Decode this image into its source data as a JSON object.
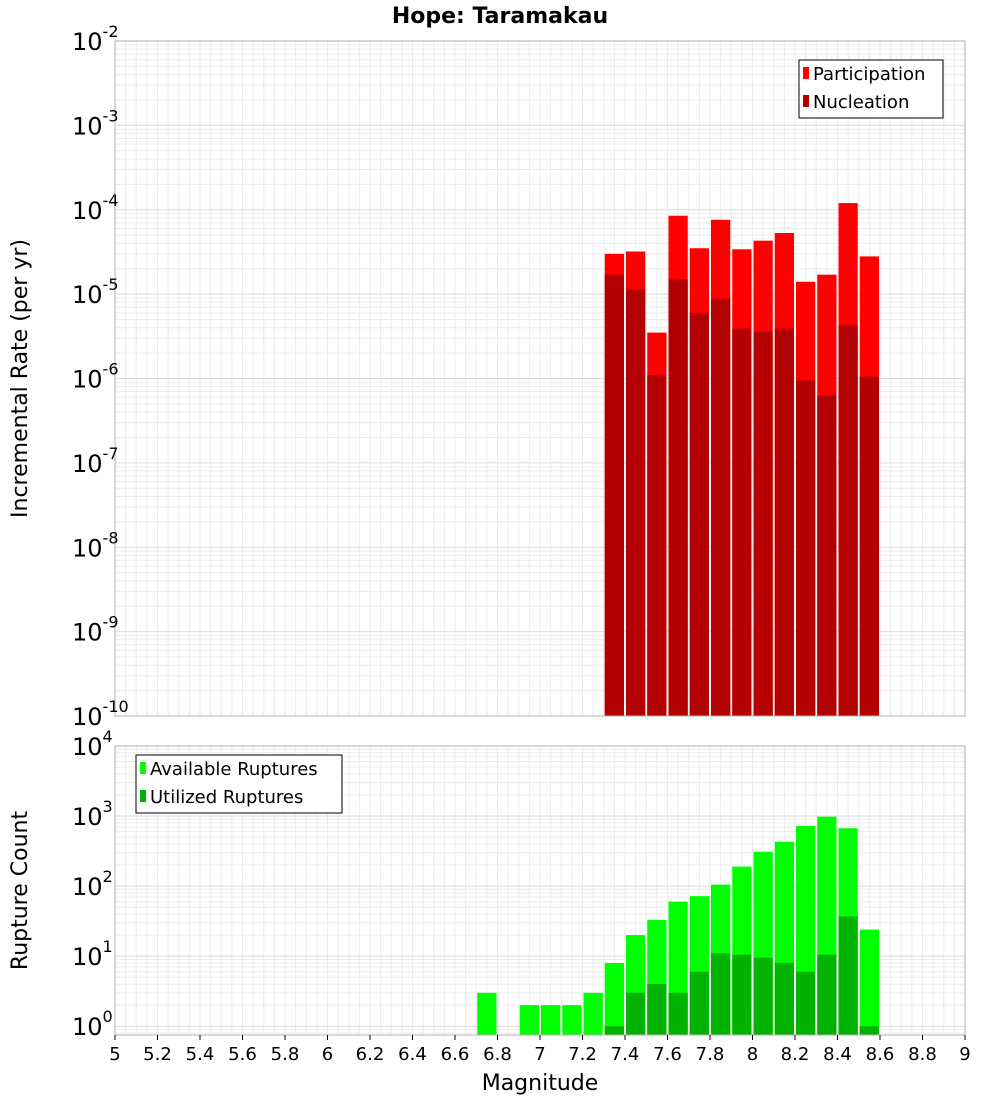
{
  "chart_data": {
    "title": "Hope: Taramakau",
    "xlabel": "Magnitude",
    "xlim": [
      5,
      9
    ],
    "x_ticks": [
      "5",
      "5.2",
      "5.4",
      "5.6",
      "5.8",
      "6",
      "6.2",
      "6.4",
      "6.6",
      "6.8",
      "7",
      "7.2",
      "7.4",
      "7.6",
      "7.8",
      "8",
      "8.2",
      "8.4",
      "8.6",
      "8.8",
      "9"
    ],
    "bin_width": 0.1,
    "grid": true,
    "panels": [
      {
        "type": "bar",
        "yscale": "log",
        "ylabel": "Incremental Rate (per yr)",
        "ylim": [
          1e-10,
          0.01
        ],
        "y_tick_exponents": [
          -10,
          -9,
          -8,
          -7,
          -6,
          -5,
          -4,
          -3,
          -2
        ],
        "legend": {
          "placement": "top-right",
          "entries": [
            "Participation",
            "Nucleation"
          ]
        },
        "series": [
          {
            "name": "Participation",
            "color": "#ff0000",
            "x": [
              7.35,
              7.45,
              7.55,
              7.65,
              7.75,
              7.85,
              7.95,
              8.05,
              8.15,
              8.25,
              8.35,
              8.45,
              8.55
            ],
            "values": [
              3e-05,
              3.2e-05,
              3.5e-06,
              8.5e-05,
              3.5e-05,
              7.6e-05,
              3.4e-05,
              4.3e-05,
              5.3e-05,
              1.4e-05,
              1.7e-05,
              0.00012,
              2.8e-05
            ]
          },
          {
            "name": "Nucleation",
            "color": "#b30000",
            "x": [
              7.35,
              7.45,
              7.55,
              7.65,
              7.75,
              7.85,
              7.95,
              8.05,
              8.15,
              8.25,
              8.35,
              8.45,
              8.55
            ],
            "values": [
              1.7e-05,
              1.15e-05,
              1.1e-06,
              1.5e-05,
              6e-06,
              8.8e-06,
              3.9e-06,
              3.6e-06,
              3.9e-06,
              9.5e-07,
              6.3e-07,
              4.3e-06,
              1.05e-06
            ]
          }
        ]
      },
      {
        "type": "bar",
        "yscale": "log",
        "ylabel": "Rupture Count",
        "ylim": [
          0.75,
          10000
        ],
        "y_tick_exponents": [
          0,
          1,
          2,
          3,
          4
        ],
        "legend": {
          "placement": "top-left",
          "entries": [
            "Available Ruptures",
            "Utilized Ruptures"
          ]
        },
        "series": [
          {
            "name": "Available Ruptures",
            "color": "#00ff00",
            "x": [
              6.75,
              6.95,
              7.05,
              7.15,
              7.25,
              7.35,
              7.45,
              7.55,
              7.65,
              7.75,
              7.85,
              7.95,
              8.05,
              8.15,
              8.25,
              8.35,
              8.45,
              8.55
            ],
            "values": [
              3,
              2,
              2,
              2,
              3,
              8,
              20,
              33,
              60,
              72,
              105,
              190,
              310,
              430,
              720,
              980,
              670,
              24
            ]
          },
          {
            "name": "Utilized Ruptures",
            "color": "#00b300",
            "x": [
              7.35,
              7.45,
              7.55,
              7.65,
              7.75,
              7.85,
              7.95,
              8.05,
              8.15,
              8.25,
              8.35,
              8.45,
              8.55
            ],
            "values": [
              1,
              3,
              4,
              3,
              6,
              11,
              10.5,
              9.5,
              8,
              6,
              10.5,
              37,
              1
            ]
          }
        ]
      }
    ]
  }
}
